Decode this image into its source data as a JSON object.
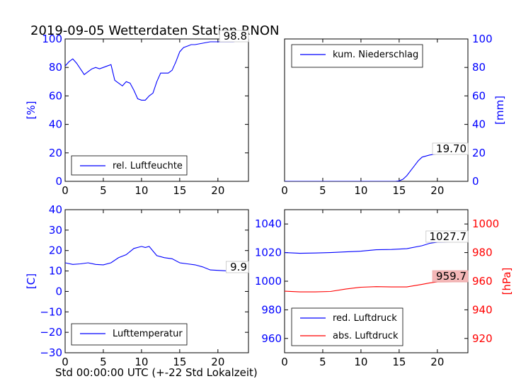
{
  "title": "2019-09-05 Wetterdaten Station RNON",
  "xlabel": "Std 00:00:00 UTC (+-22 Std Lokalzeit)",
  "colors": {
    "blue": "#0000ff",
    "red": "#ff0000",
    "red_box": "#f4b8b8"
  },
  "chart_data": [
    {
      "type": "line",
      "id": "humidity",
      "ylabel": "[%]",
      "ylim": [
        0,
        100
      ],
      "xlim": [
        0,
        24
      ],
      "yticks": [
        0,
        20,
        40,
        60,
        80,
        100
      ],
      "xticks": [
        0,
        5,
        10,
        15,
        20
      ],
      "series": [
        {
          "name": "rel. Luftfeuchte",
          "color": "#0000ff",
          "x": [
            0,
            0.5,
            1,
            1.5,
            2,
            2.5,
            3,
            3.5,
            4,
            4.5,
            5,
            5.5,
            6,
            6.5,
            7,
            7.5,
            8,
            8.5,
            9,
            9.5,
            10,
            10.5,
            11,
            11.5,
            12,
            12.5,
            13,
            13.5,
            14,
            14.5,
            15,
            15.5,
            16,
            16.5,
            17,
            18,
            19,
            20,
            21,
            22,
            23,
            24
          ],
          "y": [
            81,
            84,
            86,
            83,
            79,
            75,
            77,
            79,
            80,
            79,
            80,
            81,
            82,
            71,
            69,
            67,
            70,
            69,
            64,
            58,
            57,
            57,
            60,
            62,
            70,
            76,
            76,
            76,
            78,
            84,
            91,
            94,
            95,
            96,
            96,
            97,
            98,
            98,
            98,
            98,
            99,
            98.8
          ]
        }
      ],
      "legend_position": "lower-right",
      "annotation": "98.8"
    },
    {
      "type": "line",
      "id": "precip",
      "ylabel": "[mm]",
      "ylim": [
        0,
        100
      ],
      "xlim": [
        0,
        24
      ],
      "yticks": [
        0,
        20,
        40,
        60,
        80,
        100
      ],
      "xticks": [
        0,
        5,
        10,
        15,
        20
      ],
      "series": [
        {
          "name": "kum. Niederschlag",
          "color": "#0000ff",
          "x": [
            0,
            14.5,
            15,
            15.5,
            16,
            16.5,
            17,
            17.5,
            18,
            19,
            20,
            21,
            22,
            23,
            24
          ],
          "y": [
            0,
            0,
            0.3,
            1.5,
            4,
            7.5,
            11,
            14.5,
            17,
            18.5,
            19.3,
            19.6,
            19.7,
            19.7,
            19.7
          ]
        }
      ],
      "legend_position": "upper-right",
      "annotation": "19.70"
    },
    {
      "type": "line",
      "id": "temperature",
      "ylabel": "[C]",
      "ylim": [
        -30,
        40
      ],
      "xlim": [
        0,
        24
      ],
      "yticks": [
        -30,
        -20,
        -10,
        0,
        10,
        20,
        30,
        40
      ],
      "xticks": [
        0,
        5,
        10,
        15,
        20
      ],
      "series": [
        {
          "name": "Lufttemperatur",
          "color": "#0000ff",
          "x": [
            0,
            1,
            2,
            3,
            4,
            5,
            6,
            7,
            8,
            9,
            10,
            10.5,
            11,
            12,
            13,
            14,
            15,
            16,
            17,
            18,
            19,
            20,
            21,
            22,
            23,
            24
          ],
          "y": [
            14,
            13.2,
            13.5,
            14,
            13.2,
            13,
            14,
            16.5,
            18,
            21,
            22,
            21.5,
            22,
            17.5,
            16.5,
            16,
            14,
            13.5,
            13,
            12,
            10.5,
            10.3,
            10.1,
            10,
            9.9,
            9.9
          ]
        }
      ],
      "legend_position": "lower-right",
      "annotation": "9.9"
    },
    {
      "type": "line",
      "id": "pressure",
      "ylabel": "[hPa]",
      "ylim": [
        950,
        1050
      ],
      "ylim_right": [
        910,
        1010
      ],
      "xlim": [
        0,
        24
      ],
      "yticks": [
        960,
        980,
        1000,
        1020,
        1040
      ],
      "yticks_right": [
        920,
        940,
        960,
        980,
        1000
      ],
      "xticks": [
        0,
        5,
        10,
        15,
        20
      ],
      "series": [
        {
          "name": "red. Luftdruck",
          "color": "#0000ff",
          "axis": "left",
          "x": [
            0,
            2,
            4,
            6,
            8,
            10,
            12,
            14,
            16,
            18,
            19,
            20,
            22,
            24
          ],
          "y": [
            1020,
            1019.5,
            1019.7,
            1020,
            1020.5,
            1021,
            1022,
            1022.2,
            1022.7,
            1024.8,
            1026.5,
            1027.3,
            1027.5,
            1027.7
          ]
        },
        {
          "name": "abs. Luftdruck",
          "color": "#ff0000",
          "axis": "right",
          "x": [
            0,
            2,
            4,
            6,
            8,
            10,
            12,
            14,
            16,
            18,
            19,
            20,
            22,
            24
          ],
          "y": [
            953,
            952.5,
            952.5,
            952.8,
            954.5,
            955.8,
            956.2,
            956.0,
            956.0,
            957.8,
            958.8,
            959.5,
            959.7,
            959.7
          ]
        }
      ],
      "legend_position": "lower-left",
      "annotations": [
        "1027.7",
        "959.7"
      ]
    }
  ]
}
